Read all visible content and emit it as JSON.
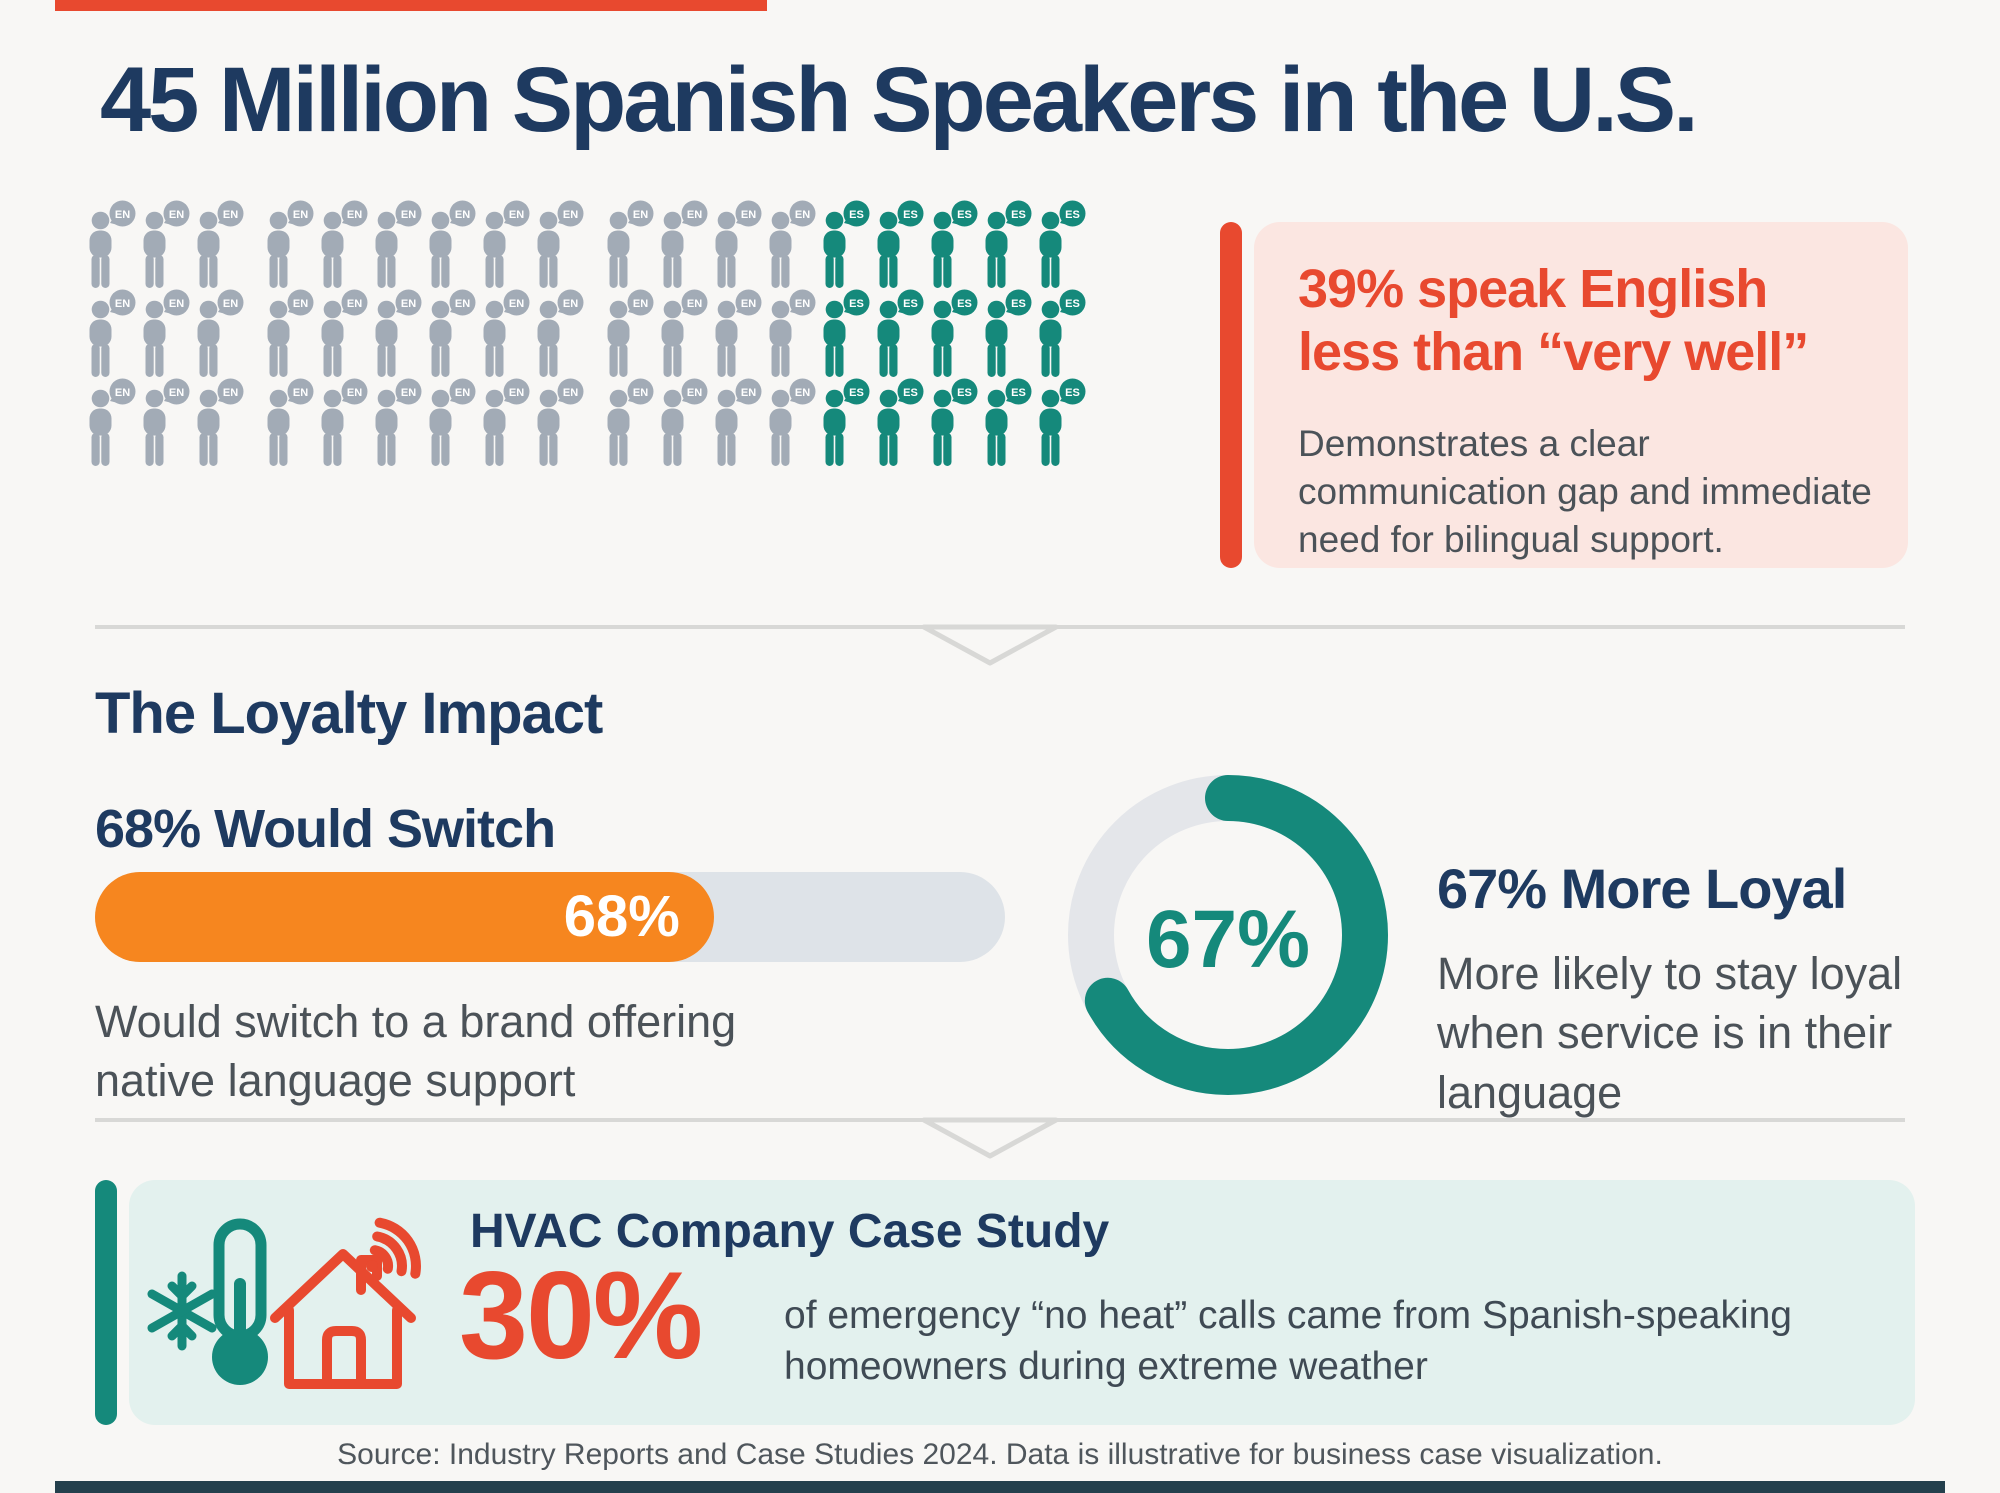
{
  "header": {
    "title": "45 Million Spanish Speakers in the U.S."
  },
  "pictogram": {
    "rows": 3,
    "en_per_row": 13,
    "es_per_row": 5,
    "en_label": "EN",
    "es_label": "ES",
    "en_color": "#a2abb6",
    "es_color": "#15897b",
    "group_breaks": [
      3,
      9
    ],
    "meaning": "Gray figures speak English (EN); teal figures speak Spanish (ES)"
  },
  "callout": {
    "heading": "39% speak English\nless than “very well”",
    "body": "Demonstrates a clear\ncommunication gap and immediate\nneed for bilingual support.",
    "accent_color": "#e8492f",
    "background_color": "#fbe6e1"
  },
  "loyalty": {
    "heading": "The Loyalty Impact",
    "switch": {
      "heading": "68% Would Switch",
      "percent": 68,
      "bar_label": "68%",
      "description": "Would switch to a brand offering\nnative language support",
      "bar_color": "#f6861f",
      "track_color": "#dee3e8"
    },
    "loyal": {
      "heading": "67% More Loyal",
      "percent": 67,
      "center_label": "67%",
      "description": "More likely to stay loyal\nwhen service is in their\nlanguage",
      "ring_color": "#15897b",
      "track_color": "#e4e6ea"
    }
  },
  "case_study": {
    "heading": "HVAC Company Case Study",
    "stat": "30%",
    "description": "of emergency “no heat” calls came from Spanish-speaking\nhomeowners during extreme weather",
    "accent_color": "#15897b",
    "background_color": "#e3f1ee",
    "icons": [
      "snowflake-icon",
      "thermometer-icon",
      "house-wifi-icon"
    ]
  },
  "footer": {
    "source": "Source: Industry Reports and Case Studies 2024. Data is illustrative for business case visualization."
  },
  "chart_data": [
    {
      "type": "pictogram",
      "title": "45 Million Spanish Speakers in the U.S.",
      "categories": [
        "English speakers (EN)",
        "Spanish speakers with English less than very well (ES)"
      ],
      "values": [
        39,
        15
      ],
      "units": "figures per grid (13 EN + 5 ES per row, 3 rows)",
      "annotation": "39% speak English less than “very well”"
    },
    {
      "type": "bar",
      "categories": [
        "Would switch to a brand offering native language support"
      ],
      "values": [
        68
      ],
      "title": "68% Would Switch",
      "xlabel": "",
      "ylabel": "",
      "xlim": [
        0,
        100
      ],
      "bar_color": "#f6861f"
    },
    {
      "type": "pie",
      "categories": [
        "More loyal when service is in their language",
        "Other"
      ],
      "values": [
        67,
        33
      ],
      "title": "67% More Loyal",
      "style": "donut, teal segment starts at 12 o'clock clockwise"
    },
    {
      "type": "bar",
      "categories": [
        "Emergency “no heat” calls from Spanish-speaking homeowners"
      ],
      "values": [
        30
      ],
      "title": "HVAC Company Case Study",
      "xlim": [
        0,
        100
      ]
    }
  ]
}
